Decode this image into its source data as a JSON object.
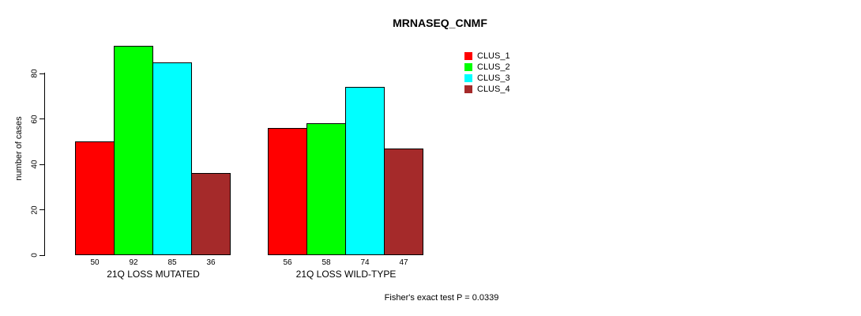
{
  "figure": {
    "title": "MRNASEQ_CNMF",
    "y_axis_label": "number of cases",
    "footer_note": "Fisher's exact test P = 0.0339"
  },
  "chart_data": {
    "type": "bar",
    "title": "MRNASEQ_CNMF",
    "xlabel": "",
    "ylabel": "number of cases",
    "categories": [
      "21Q LOSS MUTATED",
      "21Q LOSS WILD-TYPE"
    ],
    "series": [
      {
        "name": "CLUS_1",
        "color": "#ff0000",
        "values": [
          50,
          56
        ]
      },
      {
        "name": "CLUS_2",
        "color": "#00ff00",
        "values": [
          92,
          58
        ]
      },
      {
        "name": "CLUS_3",
        "color": "#00ffff",
        "values": [
          85,
          74
        ]
      },
      {
        "name": "CLUS_4",
        "color": "#a52a2a",
        "values": [
          36,
          47
        ]
      }
    ],
    "bar_value_labels": {
      "21Q LOSS MUTATED": [
        50,
        92,
        85,
        36
      ],
      "21Q LOSS WILD-TYPE": [
        56,
        58,
        74,
        47
      ]
    },
    "y_ticks": [
      0,
      20,
      40,
      60,
      80
    ],
    "ylim": [
      0,
      92
    ],
    "grid": false,
    "legend_position": "top-right",
    "legend_entries": [
      "CLUS_1",
      "CLUS_2",
      "CLUS_3",
      "CLUS_4"
    ],
    "annotation": "Fisher's exact test P = 0.0339"
  },
  "colors": {
    "background": "#ffffff",
    "text": "#000000",
    "bar_border": "#000000",
    "clus_1": "#ff0000",
    "clus_2": "#00ff00",
    "clus_3": "#00ffff",
    "clus_4": "#a52a2a"
  }
}
